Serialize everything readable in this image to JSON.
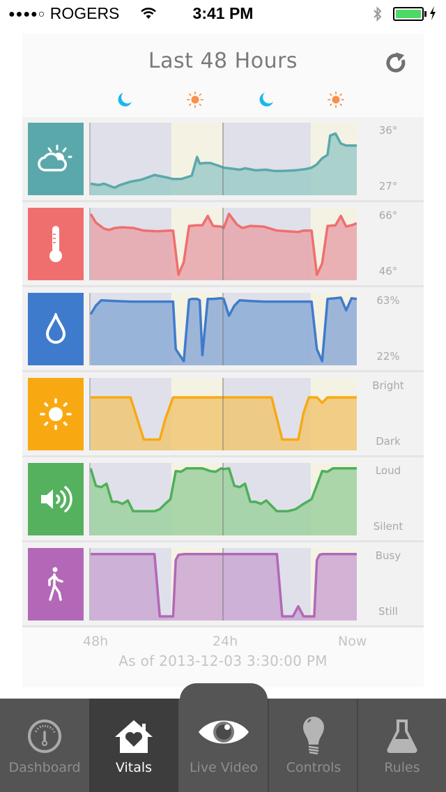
{
  "status_bar": {
    "signal_dots": "●●●●○",
    "carrier": "ROGERS",
    "time": "3:41 PM",
    "battery_color": "#4cd964"
  },
  "header": {
    "title": "Last 48 Hours",
    "refresh_icon": "refresh-icon",
    "period_icons": [
      {
        "name": "moon-icon",
        "color": "#1ab8ef"
      },
      {
        "name": "sun-icon",
        "color": "#f7904a"
      },
      {
        "name": "moon-icon",
        "color": "#1ab8ef"
      },
      {
        "name": "sun-icon",
        "color": "#f7904a"
      }
    ]
  },
  "chart_data": {
    "type": "area",
    "title": "Last 48 Hours",
    "x_ticks": [
      "48h",
      "24h",
      "Now"
    ],
    "bands": [
      {
        "type": "night",
        "from": 0,
        "to": 0.307,
        "color": "#dfe0e9"
      },
      {
        "type": "day",
        "from": 0.307,
        "to": 0.5,
        "color": "#f4f2e3"
      },
      {
        "type": "night",
        "from": 0.5,
        "to": 0.828,
        "color": "#dfe0e9"
      },
      {
        "type": "day",
        "from": 0.828,
        "to": 1.0,
        "color": "#f4f2e3"
      }
    ],
    "series": [
      {
        "name": "Weather",
        "icon": "weather-cloud-sun-icon",
        "color": "#5aa8ab",
        "fill": "#9ecbc9",
        "max_label": "36°",
        "min_label": "27°",
        "x": [
          0,
          0.03,
          0.05,
          0.09,
          0.11,
          0.15,
          0.19,
          0.24,
          0.29,
          0.31,
          0.34,
          0.38,
          0.4,
          0.41,
          0.43,
          0.45,
          0.48,
          0.5,
          0.52,
          0.56,
          0.58,
          0.62,
          0.66,
          0.69,
          0.72,
          0.77,
          0.81,
          0.83,
          0.85,
          0.87,
          0.89,
          0.9,
          0.92,
          0.94,
          0.96,
          0.98,
          1.0
        ],
        "y": [
          0.13,
          0.11,
          0.13,
          0.07,
          0.11,
          0.16,
          0.19,
          0.26,
          0.22,
          0.2,
          0.2,
          0.25,
          0.53,
          0.43,
          0.44,
          0.44,
          0.4,
          0.37,
          0.36,
          0.34,
          0.36,
          0.33,
          0.34,
          0.32,
          0.32,
          0.33,
          0.35,
          0.37,
          0.42,
          0.51,
          0.56,
          0.85,
          0.88,
          0.73,
          0.7,
          0.7,
          0.7
        ]
      },
      {
        "name": "Temperature",
        "icon": "thermometer-icon",
        "color": "#ef6f6f",
        "fill": "#e8a6ab",
        "max_label": "66°",
        "min_label": "46°",
        "x": [
          0,
          0.02,
          0.05,
          0.07,
          0.09,
          0.12,
          0.16,
          0.2,
          0.25,
          0.3,
          0.31,
          0.33,
          0.35,
          0.37,
          0.4,
          0.42,
          0.44,
          0.46,
          0.49,
          0.5,
          0.52,
          0.55,
          0.57,
          0.6,
          0.65,
          0.7,
          0.74,
          0.78,
          0.8,
          0.82,
          0.83,
          0.85,
          0.87,
          0.89,
          0.92,
          0.94,
          0.96,
          0.98,
          1.0
        ],
        "y": [
          0.95,
          0.82,
          0.73,
          0.71,
          0.74,
          0.75,
          0.74,
          0.7,
          0.69,
          0.7,
          0.7,
          0.04,
          0.23,
          0.77,
          0.78,
          0.78,
          0.92,
          0.77,
          0.76,
          0.74,
          0.95,
          0.79,
          0.74,
          0.77,
          0.76,
          0.7,
          0.69,
          0.68,
          0.7,
          0.7,
          0.7,
          0.04,
          0.21,
          0.77,
          0.78,
          0.92,
          0.76,
          0.78,
          0.81
        ]
      },
      {
        "name": "Humidity",
        "icon": "water-drop-icon",
        "color": "#3f7bcc",
        "fill": "#8dacd6",
        "max_label": "63%",
        "min_label": "22%",
        "x": [
          0,
          0.02,
          0.04,
          0.09,
          0.15,
          0.2,
          0.25,
          0.3,
          0.31,
          0.32,
          0.35,
          0.37,
          0.38,
          0.4,
          0.41,
          0.42,
          0.44,
          0.46,
          0.49,
          0.5,
          0.52,
          0.54,
          0.56,
          0.6,
          0.65,
          0.7,
          0.75,
          0.8,
          0.82,
          0.83,
          0.85,
          0.87,
          0.89,
          0.92,
          0.94,
          0.96,
          0.98,
          1.0
        ],
        "y": [
          0.72,
          0.85,
          0.93,
          0.92,
          0.91,
          0.91,
          0.91,
          0.91,
          0.91,
          0.2,
          0.02,
          0.94,
          0.95,
          0.95,
          0.93,
          0.11,
          0.95,
          0.95,
          0.96,
          0.95,
          0.7,
          0.85,
          0.93,
          0.92,
          0.91,
          0.91,
          0.91,
          0.91,
          0.91,
          0.91,
          0.2,
          0.02,
          0.95,
          0.96,
          0.97,
          0.78,
          0.96,
          0.95
        ]
      },
      {
        "name": "Light",
        "icon": "brightness-sun-icon",
        "color": "#f8a912",
        "fill": "#f0c774",
        "max_label": "Bright",
        "min_label": "Dark",
        "x": [
          0,
          0.15,
          0.2,
          0.26,
          0.28,
          0.29,
          0.31,
          0.35,
          0.5,
          0.65,
          0.68,
          0.72,
          0.78,
          0.8,
          0.82,
          0.83,
          0.85,
          0.87,
          0.89,
          0.92,
          1.0
        ],
        "y": [
          0.75,
          0.75,
          0.12,
          0.12,
          0.42,
          0.53,
          0.75,
          0.75,
          0.75,
          0.75,
          0.75,
          0.12,
          0.12,
          0.52,
          0.75,
          0.75,
          0.75,
          0.67,
          0.75,
          0.75,
          0.75
        ]
      },
      {
        "name": "Sound",
        "icon": "speaker-volume-icon",
        "color": "#4faf59",
        "fill": "#9dd19f",
        "max_label": "Loud",
        "min_label": "Silent",
        "x": [
          0,
          0.02,
          0.04,
          0.06,
          0.08,
          0.1,
          0.12,
          0.14,
          0.16,
          0.2,
          0.24,
          0.26,
          0.28,
          0.3,
          0.32,
          0.34,
          0.36,
          0.38,
          0.42,
          0.45,
          0.47,
          0.49,
          0.5,
          0.52,
          0.54,
          0.56,
          0.58,
          0.6,
          0.62,
          0.64,
          0.66,
          0.7,
          0.74,
          0.77,
          0.8,
          0.83,
          0.87,
          0.89,
          0.91,
          0.93,
          1.0
        ],
        "y": [
          0.96,
          0.7,
          0.68,
          0.73,
          0.46,
          0.46,
          0.43,
          0.48,
          0.32,
          0.32,
          0.32,
          0.35,
          0.43,
          0.5,
          0.92,
          0.91,
          0.96,
          0.96,
          0.96,
          0.92,
          0.91,
          0.96,
          0.95,
          0.96,
          0.7,
          0.68,
          0.73,
          0.46,
          0.46,
          0.43,
          0.48,
          0.32,
          0.32,
          0.35,
          0.43,
          0.5,
          0.92,
          0.91,
          0.96,
          0.96,
          0.96
        ]
      },
      {
        "name": "Activity",
        "icon": "walking-person-icon",
        "color": "#b268b7",
        "fill": "#cba8d2",
        "max_label": "Busy",
        "min_label": "Still",
        "x": [
          0,
          0.05,
          0.1,
          0.15,
          0.2,
          0.24,
          0.26,
          0.3,
          0.31,
          0.32,
          0.33,
          0.35,
          0.4,
          0.5,
          0.6,
          0.7,
          0.72,
          0.74,
          0.76,
          0.78,
          0.8,
          0.82,
          0.84,
          0.85,
          0.86,
          0.87,
          0.9,
          1.0
        ],
        "y": [
          0.95,
          0.95,
          0.95,
          0.95,
          0.95,
          0.95,
          0.02,
          0.02,
          0.02,
          0.86,
          0.94,
          0.95,
          0.95,
          0.95,
          0.95,
          0.95,
          0.02,
          0.02,
          0.02,
          0.17,
          0.02,
          0.02,
          0.02,
          0.86,
          0.94,
          0.95,
          0.95,
          0.95
        ]
      }
    ]
  },
  "footer": {
    "x_labels": [
      "48h",
      "24h",
      "Now"
    ],
    "as_of": "As of 2013-12-03 3:30:00 PM"
  },
  "tabbar": {
    "tabs": [
      {
        "label": "Dashboard",
        "icon": "gauge-icon",
        "active": false
      },
      {
        "label": "Vitals",
        "icon": "house-heart-icon",
        "active": true
      },
      {
        "label": "Live Video",
        "icon": "eye-icon",
        "active": false
      },
      {
        "label": "Controls",
        "icon": "lightbulb-icon",
        "active": false
      },
      {
        "label": "Rules",
        "icon": "flask-icon",
        "active": false
      }
    ]
  }
}
